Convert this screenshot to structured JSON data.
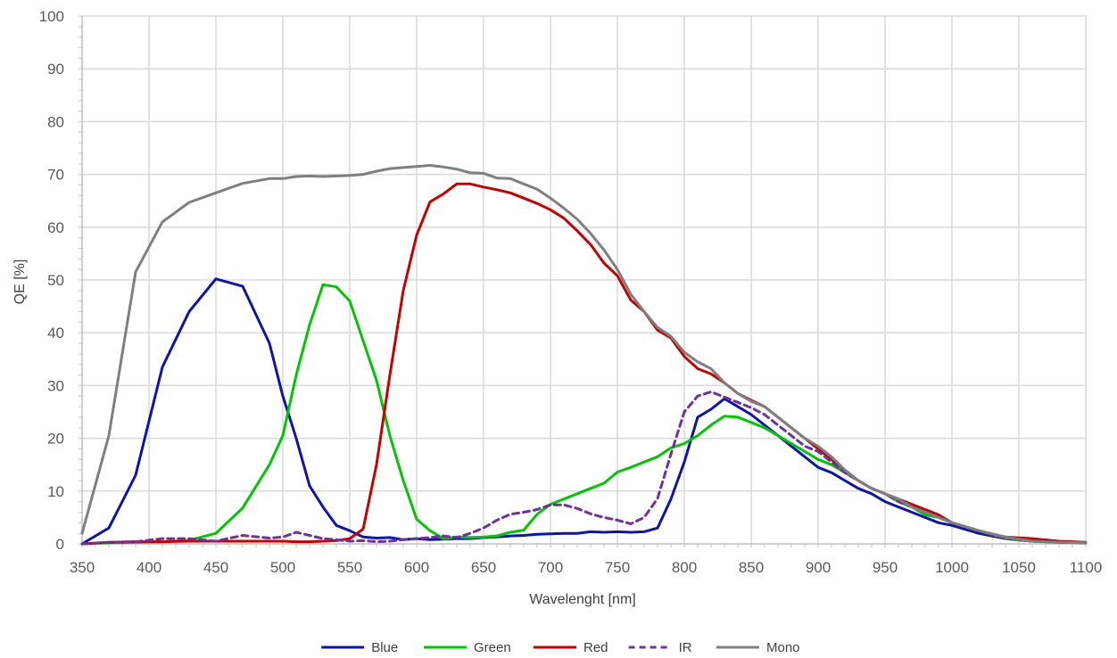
{
  "chart_data": {
    "type": "line",
    "title": "",
    "xlabel": "Wavelenght [nm]",
    "ylabel": "QE [%]",
    "xlim": [
      350,
      1100
    ],
    "ylim": [
      0,
      100
    ],
    "x_ticks": [
      "350",
      "400",
      "450",
      "500",
      "550",
      "600",
      "650",
      "700",
      "750",
      "800",
      "850",
      "900",
      "950",
      "1000",
      "1050",
      "1100"
    ],
    "y_ticks": [
      "0",
      "10",
      "20",
      "30",
      "40",
      "50",
      "60",
      "70",
      "80",
      "90",
      "100"
    ],
    "grid": "vertical and horizontal",
    "legend_position": "bottom",
    "series": [
      {
        "name": "Blue",
        "color": "#0a14b4",
        "dash": "solid",
        "x": [
          350,
          370,
          390,
          410,
          430,
          450,
          470,
          490,
          500,
          510,
          520,
          530,
          540,
          550,
          560,
          570,
          580,
          590,
          600,
          610,
          620,
          630,
          640,
          650,
          660,
          670,
          680,
          690,
          700,
          710,
          720,
          730,
          740,
          750,
          760,
          770,
          780,
          790,
          800,
          810,
          820,
          830,
          840,
          850,
          860,
          870,
          880,
          890,
          900,
          910,
          920,
          930,
          940,
          950,
          960,
          970,
          980,
          990,
          1000,
          1020,
          1040,
          1060,
          1080,
          1100
        ],
        "y": [
          0,
          3,
          13,
          33.5,
          44,
          50.2,
          48.8,
          38,
          28,
          20,
          11,
          7,
          3.5,
          2.5,
          1.3,
          1.1,
          1.2,
          0.8,
          1,
          0.8,
          0.9,
          1,
          1,
          1.2,
          1.3,
          1.5,
          1.6,
          1.8,
          1.9,
          2,
          2,
          2.3,
          2.2,
          2.3,
          2.2,
          2.3,
          3,
          8.5,
          15.5,
          24,
          25.5,
          27.5,
          26,
          24.5,
          22.5,
          20.5,
          18.5,
          16.5,
          14.5,
          13.5,
          12,
          10.5,
          9.5,
          8,
          7,
          6,
          5,
          4,
          3.5,
          2,
          1,
          0.5,
          0.3,
          0.2
        ]
      },
      {
        "name": "Green",
        "color": "#00c800",
        "dash": "solid",
        "x": [
          350,
          370,
          390,
          410,
          430,
          450,
          470,
          490,
          500,
          510,
          520,
          530,
          540,
          550,
          560,
          570,
          580,
          590,
          600,
          610,
          620,
          630,
          640,
          650,
          660,
          670,
          680,
          690,
          700,
          710,
          720,
          730,
          740,
          750,
          760,
          770,
          780,
          790,
          800,
          810,
          820,
          830,
          840,
          850,
          860,
          870,
          880,
          890,
          900,
          910,
          920,
          930,
          940,
          950,
          960,
          970,
          980,
          990,
          1000,
          1020,
          1040,
          1060,
          1080,
          1100
        ],
        "y": [
          0,
          0.2,
          0.3,
          0.4,
          0.7,
          2,
          6.8,
          15,
          20.5,
          32,
          41.5,
          49.1,
          48.7,
          46,
          38.5,
          31,
          20.5,
          12,
          4.7,
          2.5,
          1,
          1.3,
          1.2,
          1.3,
          1.5,
          2.2,
          2.6,
          5.6,
          7.5,
          8.5,
          9.5,
          10.5,
          11.5,
          13.6,
          14.5,
          15.5,
          16.5,
          18.2,
          19,
          20.5,
          22.5,
          24.2,
          24,
          23,
          22,
          20.5,
          19,
          17.5,
          16,
          15,
          13.5,
          12,
          10.5,
          9.5,
          8,
          7,
          5.5,
          5,
          4,
          2.5,
          1,
          0.5,
          0.3,
          0.2
        ]
      },
      {
        "name": "Red",
        "color": "#c80000",
        "dash": "solid",
        "x": [
          350,
          370,
          390,
          410,
          430,
          450,
          470,
          490,
          500,
          510,
          520,
          530,
          540,
          550,
          560,
          570,
          580,
          590,
          600,
          610,
          620,
          630,
          640,
          650,
          660,
          670,
          680,
          690,
          700,
          710,
          720,
          730,
          740,
          750,
          760,
          770,
          780,
          790,
          800,
          810,
          820,
          830,
          840,
          850,
          860,
          870,
          880,
          890,
          900,
          910,
          920,
          930,
          940,
          950,
          960,
          970,
          980,
          990,
          1000,
          1020,
          1040,
          1060,
          1080,
          1100
        ],
        "y": [
          0,
          0.3,
          0.4,
          0.4,
          0.5,
          0.5,
          0.5,
          0.5,
          0.5,
          0.4,
          0.4,
          0.5,
          0.6,
          1,
          2.8,
          15,
          32,
          48,
          58.5,
          64.8,
          66.3,
          68.2,
          68.2,
          67.6,
          67.1,
          66.5,
          65.5,
          64.5,
          63.3,
          61.7,
          59.3,
          56.7,
          53.2,
          50.8,
          46.2,
          44,
          40.5,
          39,
          35.5,
          33.2,
          32.2,
          30.5,
          28.5,
          27.2,
          26,
          24,
          22,
          20,
          18,
          16,
          14,
          12,
          10.5,
          9.5,
          8.5,
          7.5,
          6.5,
          5.5,
          4,
          2.5,
          1.3,
          1,
          0.5,
          0.3
        ]
      },
      {
        "name": "IR",
        "color": "#7030a0",
        "dash": "dashed",
        "x": [
          350,
          370,
          390,
          410,
          430,
          450,
          470,
          490,
          500,
          510,
          520,
          530,
          540,
          550,
          560,
          570,
          580,
          590,
          600,
          610,
          620,
          630,
          640,
          650,
          660,
          670,
          680,
          690,
          700,
          710,
          720,
          730,
          740,
          750,
          760,
          770,
          780,
          790,
          800,
          810,
          820,
          830,
          840,
          850,
          860,
          870,
          880,
          890,
          900,
          910,
          920,
          930,
          940,
          950,
          960,
          970,
          980,
          990,
          1000,
          1020,
          1040,
          1060,
          1080,
          1100
        ],
        "y": [
          0,
          0.3,
          0.4,
          1,
          1,
          0.5,
          1.6,
          1.1,
          1.3,
          2.2,
          1.6,
          1,
          0.8,
          0.5,
          0.6,
          0.4,
          0.5,
          0.8,
          1,
          1.2,
          1.5,
          1.2,
          2,
          3,
          4.5,
          5.6,
          6,
          6.5,
          7.4,
          7.4,
          6.7,
          5.7,
          5,
          4.5,
          3.8,
          5,
          8.6,
          17,
          25,
          28,
          28.8,
          27.8,
          26.8,
          25.8,
          24.5,
          22.5,
          20.5,
          18.5,
          17.5,
          15.5,
          13.5,
          12,
          10.5,
          9.5,
          8,
          7,
          6,
          5,
          4,
          2.5,
          1,
          0.5,
          0.3,
          0.2
        ]
      },
      {
        "name": "Mono",
        "color": "#7f7f7f",
        "dash": "solid",
        "x": [
          350,
          370,
          390,
          410,
          430,
          450,
          470,
          490,
          500,
          510,
          520,
          530,
          540,
          550,
          560,
          570,
          580,
          590,
          600,
          610,
          620,
          630,
          640,
          650,
          660,
          670,
          680,
          690,
          700,
          710,
          720,
          730,
          740,
          750,
          760,
          770,
          780,
          790,
          800,
          810,
          820,
          830,
          840,
          850,
          860,
          870,
          880,
          890,
          900,
          910,
          920,
          930,
          940,
          950,
          960,
          970,
          980,
          990,
          1000,
          1020,
          1040,
          1060,
          1080,
          1100
        ],
        "y": [
          2,
          20.5,
          51.5,
          61,
          64.7,
          66.5,
          68.3,
          69.2,
          69.2,
          69.6,
          69.7,
          69.6,
          69.7,
          69.8,
          70,
          70.6,
          71.1,
          71.3,
          71.5,
          71.7,
          71.4,
          71,
          70.3,
          70.2,
          69.3,
          69.2,
          68.2,
          67.2,
          65.5,
          63.6,
          61.5,
          58.8,
          55.7,
          52,
          47.3,
          44,
          41,
          39.3,
          36.3,
          34.5,
          33.2,
          30.5,
          28.5,
          27,
          26,
          24,
          22,
          20,
          18.5,
          16.5,
          14,
          12,
          10.5,
          9.5,
          8.5,
          7,
          6,
          5,
          4,
          2.5,
          1.3,
          0.5,
          0.3,
          0.2
        ]
      }
    ]
  }
}
